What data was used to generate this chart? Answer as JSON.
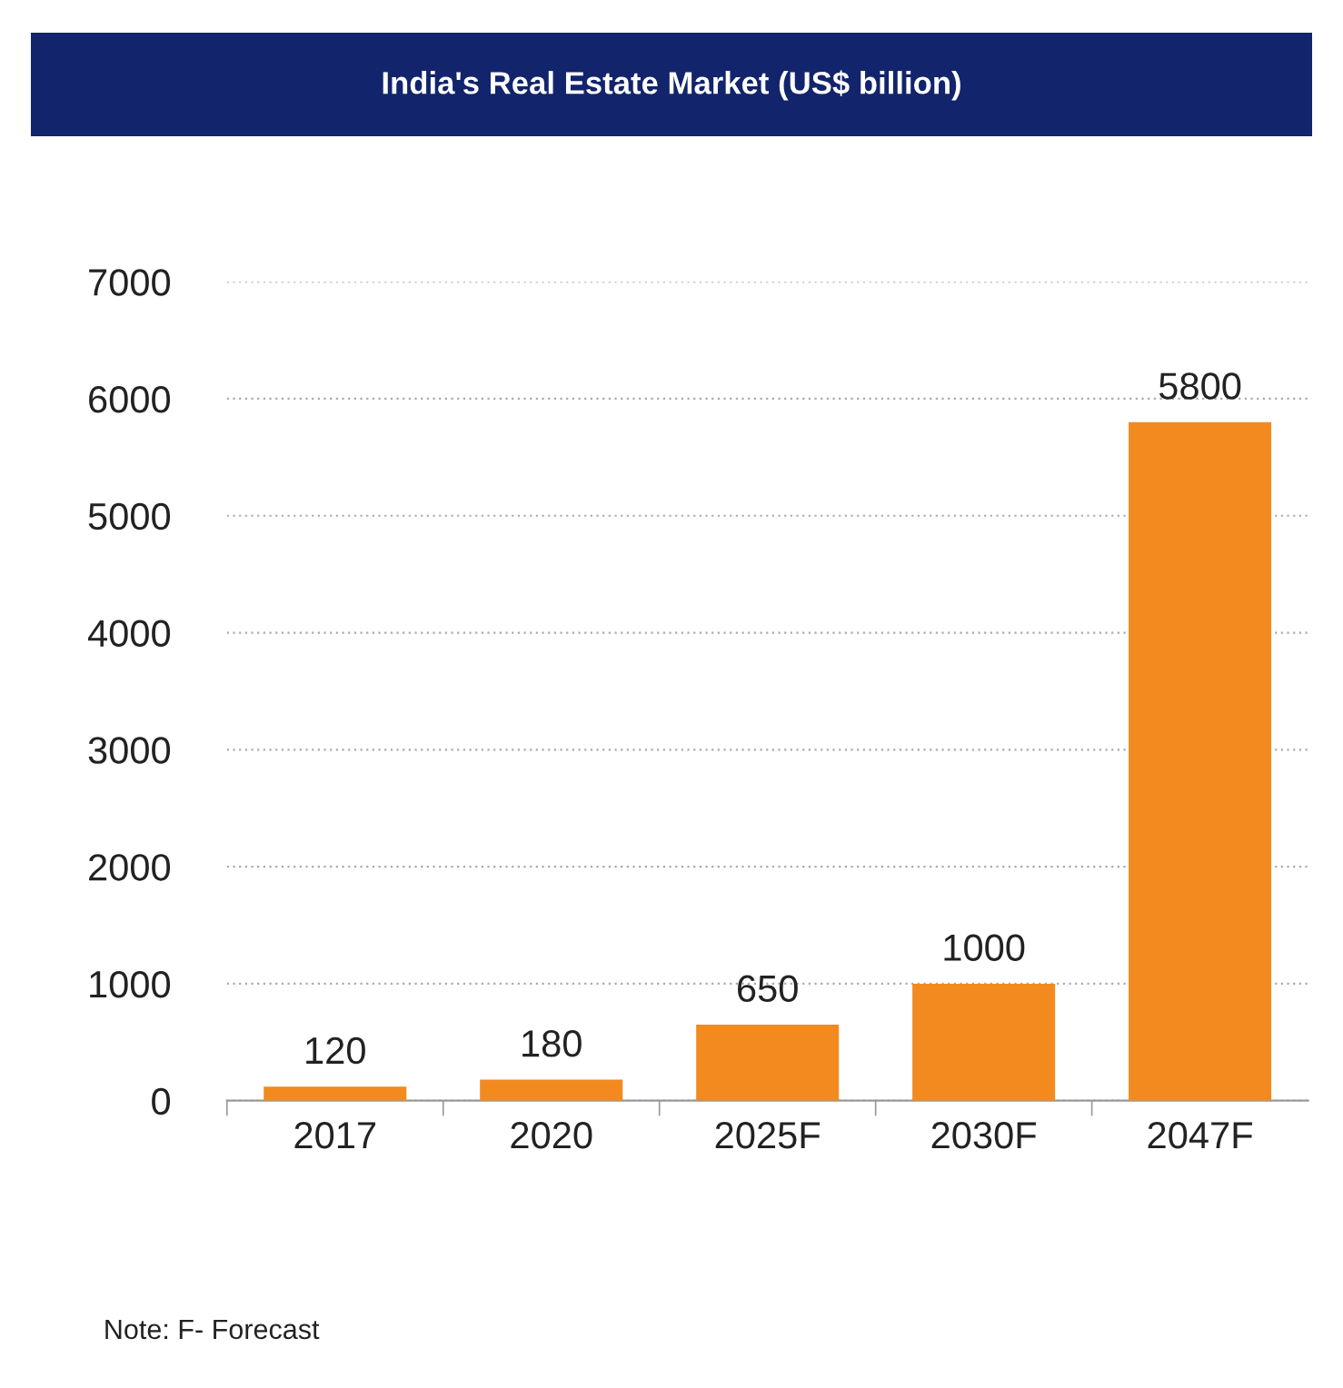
{
  "chart_data": {
    "type": "bar",
    "title": "India's Real Estate Market (US$ billion)",
    "categories": [
      "2017",
      "2020",
      "2025F",
      "2030F",
      "2047F"
    ],
    "values": [
      120,
      180,
      650,
      1000,
      5800
    ],
    "color": "#f28a20",
    "ylim": [
      0,
      7000
    ],
    "yticks": [
      0,
      1000,
      2000,
      3000,
      4000,
      5000,
      6000,
      7000
    ],
    "grid": "y",
    "data_labels": true,
    "annotations": [
      "Note: F- Forecast"
    ]
  }
}
